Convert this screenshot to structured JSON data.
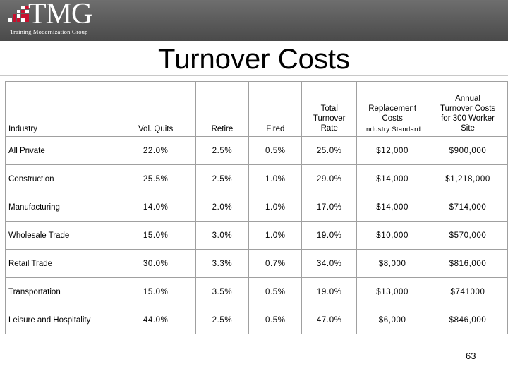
{
  "header": {
    "logo_text": "TMG",
    "logo_subtitle": "Training Modernization Group",
    "colors": {
      "band": "#5a5a5a",
      "logo_mark": "#c8102e",
      "logo_text": "#ffffff"
    }
  },
  "slide": {
    "title": "Turnover Costs",
    "page_number": "63"
  },
  "table": {
    "headers": {
      "industry": "Industry",
      "vol_quits": "Vol. Quits",
      "retire": "Retire",
      "fired": "Fired",
      "total_rate": "Total\nTurnover\nRate",
      "replacement": "Replacement\nCosts",
      "replacement_sub": "Industry Standard",
      "annual": "Annual\nTurnover Costs\nfor 300 Worker\nSite"
    },
    "rows": [
      {
        "industry": "All Private",
        "vol_quits": "22.0%",
        "retire": "2.5%",
        "fired": "0.5%",
        "total_rate": "25.0%",
        "replacement": "$12,000",
        "annual": "$900,000"
      },
      {
        "industry": "Construction",
        "vol_quits": "25.5%",
        "retire": "2.5%",
        "fired": "1.0%",
        "total_rate": "29.0%",
        "replacement": "$14,000",
        "annual": "$1,218,000"
      },
      {
        "industry": "Manufacturing",
        "vol_quits": "14.0%",
        "retire": "2.0%",
        "fired": "1.0%",
        "total_rate": "17.0%",
        "replacement": "$14,000",
        "annual": "$714,000"
      },
      {
        "industry": "Wholesale Trade",
        "vol_quits": "15.0%",
        "retire": "3.0%",
        "fired": "1.0%",
        "total_rate": "19.0%",
        "replacement": "$10,000",
        "annual": "$570,000"
      },
      {
        "industry": "Retail Trade",
        "vol_quits": "30.0%",
        "retire": "3.3%",
        "fired": "0.7%",
        "total_rate": "34.0%",
        "replacement": "$8,000",
        "annual": "$816,000"
      },
      {
        "industry": "Transportation",
        "vol_quits": "15.0%",
        "retire": "3.5%",
        "fired": "0.5%",
        "total_rate": "19.0%",
        "replacement": "$13,000",
        "annual": "$741000"
      },
      {
        "industry": "Leisure and Hospitality",
        "vol_quits": "44.0%",
        "retire": "2.5%",
        "fired": "0.5%",
        "total_rate": "47.0%",
        "replacement": "$6,000",
        "annual": "$846,000"
      }
    ]
  }
}
